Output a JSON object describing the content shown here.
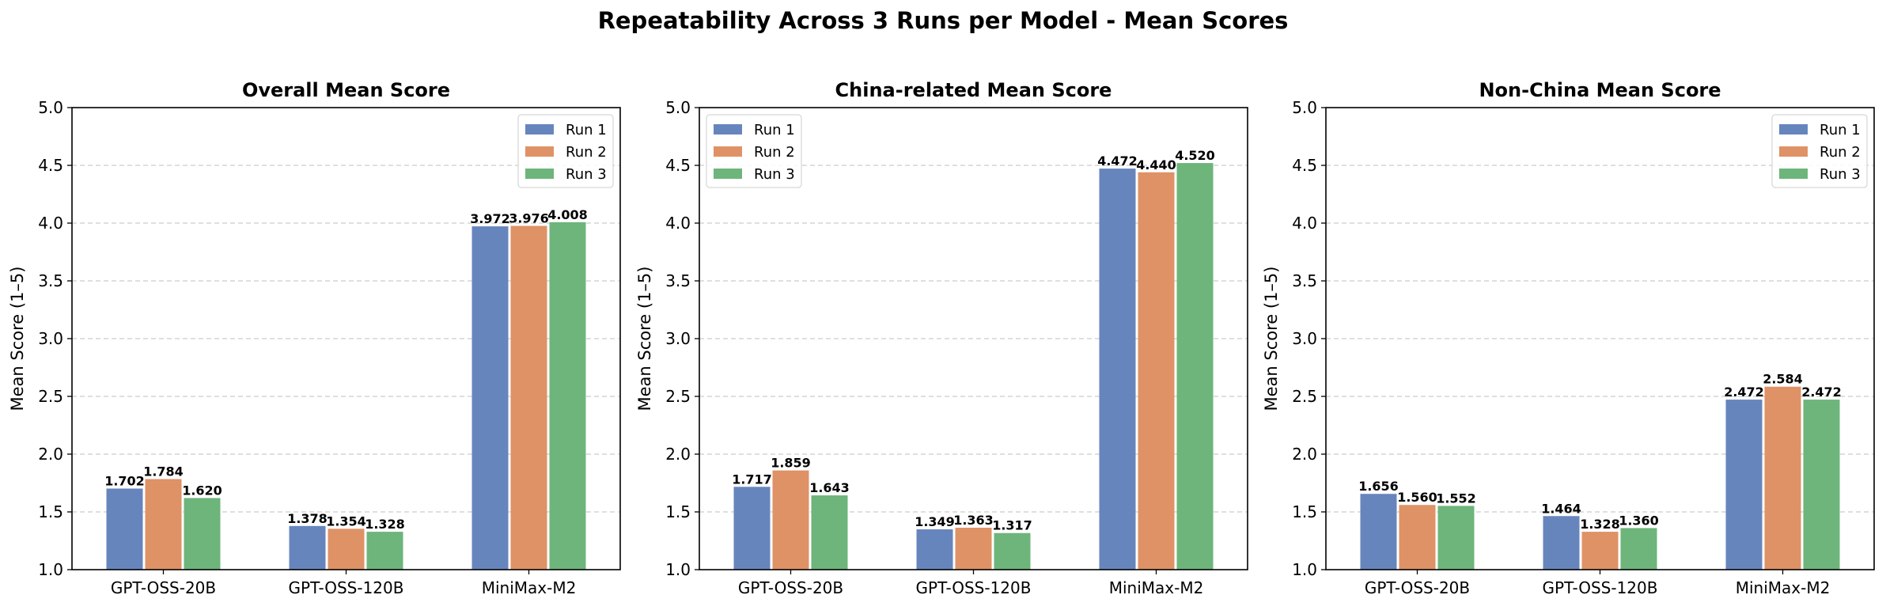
{
  "figure": {
    "title": "Repeatability Across 3 Runs per Model - Mean Scores"
  },
  "colors": {
    "Run 1": "#6785bd",
    "Run 2": "#df9266",
    "Run 3": "#6db57b"
  },
  "chart_data": [
    {
      "type": "bar",
      "title": "Overall Mean Score",
      "xlabel": "",
      "ylabel": "Mean Score (1–5)",
      "ylim": [
        1.0,
        5.0
      ],
      "yticks": [
        "1.0",
        "1.5",
        "2.0",
        "2.5",
        "3.0",
        "3.5",
        "4.0",
        "4.5",
        "5.0"
      ],
      "grid": "y dashed",
      "legend_position": "top-right",
      "categories": [
        "GPT-OSS-20B",
        "GPT-OSS-120B",
        "MiniMax-M2"
      ],
      "series": [
        {
          "name": "Run 1",
          "values": [
            1.702,
            1.378,
            3.972
          ],
          "labels": [
            "1.702",
            "1.378",
            "3.972"
          ]
        },
        {
          "name": "Run 2",
          "values": [
            1.784,
            1.354,
            3.976
          ],
          "labels": [
            "1.784",
            "1.354",
            "3.976"
          ]
        },
        {
          "name": "Run 3",
          "values": [
            1.62,
            1.328,
            4.008
          ],
          "labels": [
            "1.620",
            "1.328",
            "4.008"
          ]
        }
      ]
    },
    {
      "type": "bar",
      "title": "China-related Mean Score",
      "xlabel": "",
      "ylabel": "Mean Score (1–5)",
      "ylim": [
        1.0,
        5.0
      ],
      "yticks": [
        "1.0",
        "1.5",
        "2.0",
        "2.5",
        "3.0",
        "3.5",
        "4.0",
        "4.5",
        "5.0"
      ],
      "grid": "y dashed",
      "legend_position": "top-left",
      "categories": [
        "GPT-OSS-20B",
        "GPT-OSS-120B",
        "MiniMax-M2"
      ],
      "series": [
        {
          "name": "Run 1",
          "values": [
            1.717,
            1.349,
            4.472
          ],
          "labels": [
            "1.717",
            "1.349",
            "4.472"
          ]
        },
        {
          "name": "Run 2",
          "values": [
            1.859,
            1.363,
            4.44
          ],
          "labels": [
            "1.859",
            "1.363",
            "4.440"
          ]
        },
        {
          "name": "Run 3",
          "values": [
            1.643,
            1.317,
            4.52
          ],
          "labels": [
            "1.643",
            "1.317",
            "4.520"
          ]
        }
      ]
    },
    {
      "type": "bar",
      "title": "Non-China Mean Score",
      "xlabel": "",
      "ylabel": "Mean Score (1–5)",
      "ylim": [
        1.0,
        5.0
      ],
      "yticks": [
        "1.0",
        "1.5",
        "2.0",
        "2.5",
        "3.0",
        "3.5",
        "4.0",
        "4.5",
        "5.0"
      ],
      "grid": "y dashed",
      "legend_position": "top-right",
      "categories": [
        "GPT-OSS-20B",
        "GPT-OSS-120B",
        "MiniMax-M2"
      ],
      "series": [
        {
          "name": "Run 1",
          "values": [
            1.656,
            1.464,
            2.472
          ],
          "labels": [
            "1.656",
            "1.464",
            "2.472"
          ]
        },
        {
          "name": "Run 2",
          "values": [
            1.56,
            1.328,
            2.584
          ],
          "labels": [
            "1.560",
            "1.328",
            "2.584"
          ]
        },
        {
          "name": "Run 3",
          "values": [
            1.552,
            1.36,
            2.472
          ],
          "labels": [
            "1.552",
            "1.360",
            "2.472"
          ]
        }
      ]
    }
  ]
}
